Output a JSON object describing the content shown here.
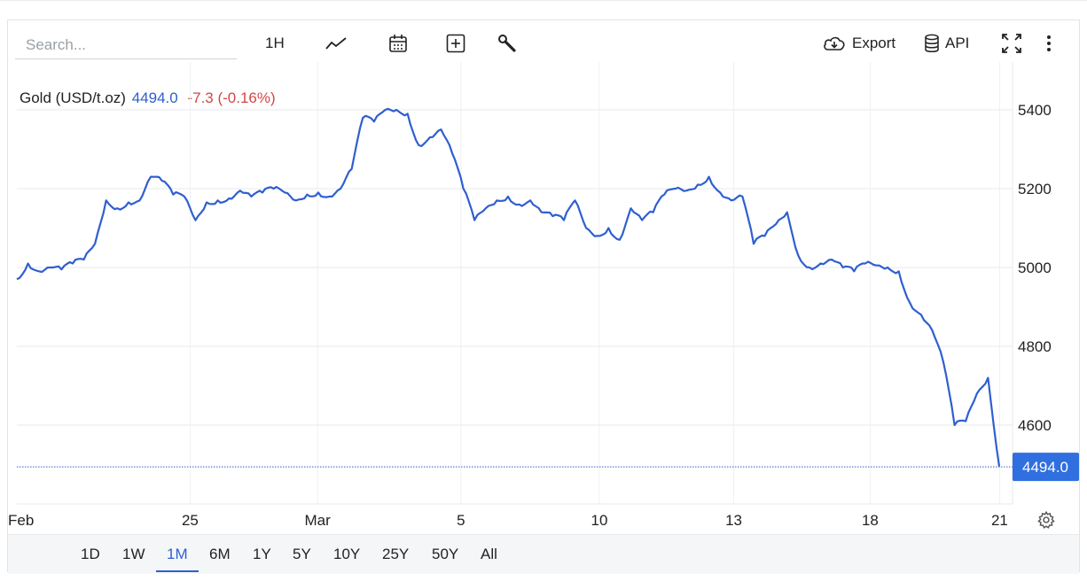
{
  "toolbar": {
    "search_placeholder": "Search...",
    "interval_label": "1H",
    "export_label": "Export",
    "api_label": "API",
    "icons": [
      "line-chart-icon",
      "calendar-icon",
      "add-indicator-icon",
      "wrench-icon",
      "cloud-download-icon",
      "database-icon",
      "fullscreen-icon",
      "more-vertical-icon"
    ]
  },
  "legend": {
    "name": "Gold (USD/t.oz)",
    "price": "4494.0",
    "change": "-7.3 (-0.16%)"
  },
  "price_tag": "4494.0",
  "colors": {
    "line": "#2f5fd0",
    "negative": "#d64545",
    "grid": "#e6e8eb",
    "tag": "#2f6fe0"
  },
  "ranges": {
    "items": [
      "1D",
      "1W",
      "1M",
      "6M",
      "1Y",
      "5Y",
      "10Y",
      "25Y",
      "50Y",
      "All"
    ],
    "active": "1M"
  },
  "chart_data": {
    "type": "line",
    "title": "",
    "xlabel": "",
    "ylabel": "",
    "ylim": [
      4400,
      5510
    ],
    "y_ticks": [
      4600,
      4800,
      5000,
      5200,
      5400
    ],
    "x_ticks": [
      "Feb",
      "25",
      "Mar",
      "5",
      "10",
      "13",
      "18",
      "21"
    ],
    "grid": true,
    "last_value": 4494.0,
    "series": [
      {
        "x": [
          "Feb 19",
          "Feb 19",
          "Feb 19",
          "Feb 20",
          "Feb 20",
          "Feb 20",
          "Feb 20",
          "Feb 23",
          "Feb 23",
          "Feb 23",
          "Feb 23",
          "Feb 24",
          "Feb 24",
          "Feb 24",
          "Feb 24",
          "Feb 25",
          "Feb 25",
          "Feb 25",
          "Feb 25",
          "Feb 26",
          "Feb 26",
          "Feb 26",
          "Feb 26",
          "Feb 27",
          "Feb 27",
          "Feb 27",
          "Feb 27",
          "Mar 2",
          "Mar 2",
          "Mar 2",
          "Mar 2",
          "Mar 3",
          "Mar 3",
          "Mar 3",
          "Mar 3",
          "Mar 4",
          "Mar 4",
          "Mar 4",
          "Mar 4",
          "Mar 5",
          "Mar 5",
          "Mar 5",
          "Mar 5",
          "Mar 6",
          "Mar 6",
          "Mar 6",
          "Mar 6",
          "Mar 9",
          "Mar 9",
          "Mar 9",
          "Mar 9",
          "Mar 10",
          "Mar 10",
          "Mar 10",
          "Mar 10",
          "Mar 11",
          "Mar 11",
          "Mar 11",
          "Mar 11",
          "Mar 12",
          "Mar 12",
          "Mar 12",
          "Mar 12",
          "Mar 13",
          "Mar 13",
          "Mar 13",
          "Mar 13",
          "Mar 16",
          "Mar 16",
          "Mar 16",
          "Mar 16",
          "Mar 17",
          "Mar 17",
          "Mar 17",
          "Mar 17",
          "Mar 18",
          "Mar 18",
          "Mar 18",
          "Mar 18",
          "Mar 19",
          "Mar 19",
          "Mar 19",
          "Mar 19",
          "Mar 20",
          "Mar 20",
          "Mar 20",
          "Mar 20",
          "Mar 21",
          "Mar 21"
        ],
        "values": [
          4970,
          5010,
          4990,
          5000,
          4995,
          5010,
          5020,
          5060,
          5170,
          5150,
          5165,
          5170,
          5230,
          5220,
          5185,
          5180,
          5120,
          5165,
          5170,
          5175,
          5195,
          5180,
          5190,
          5200,
          5190,
          5170,
          5185,
          5190,
          5180,
          5200,
          5250,
          5380,
          5370,
          5400,
          5400,
          5390,
          5310,
          5330,
          5350,
          5290,
          5200,
          5120,
          5150,
          5170,
          5180,
          5160,
          5170,
          5140,
          5130,
          5120,
          5170,
          5100,
          5080,
          5100,
          5070,
          5150,
          5120,
          5140,
          5185,
          5200,
          5195,
          5210,
          5230,
          5190,
          5170,
          5180,
          5060,
          5080,
          5110,
          5140,
          5030,
          5000,
          5010,
          5020,
          5000,
          4990,
          5010,
          5005,
          5000,
          4990,
          4910,
          4880,
          4840,
          4760,
          4600,
          4610,
          4680,
          4720,
          4495
        ]
      }
    ]
  }
}
